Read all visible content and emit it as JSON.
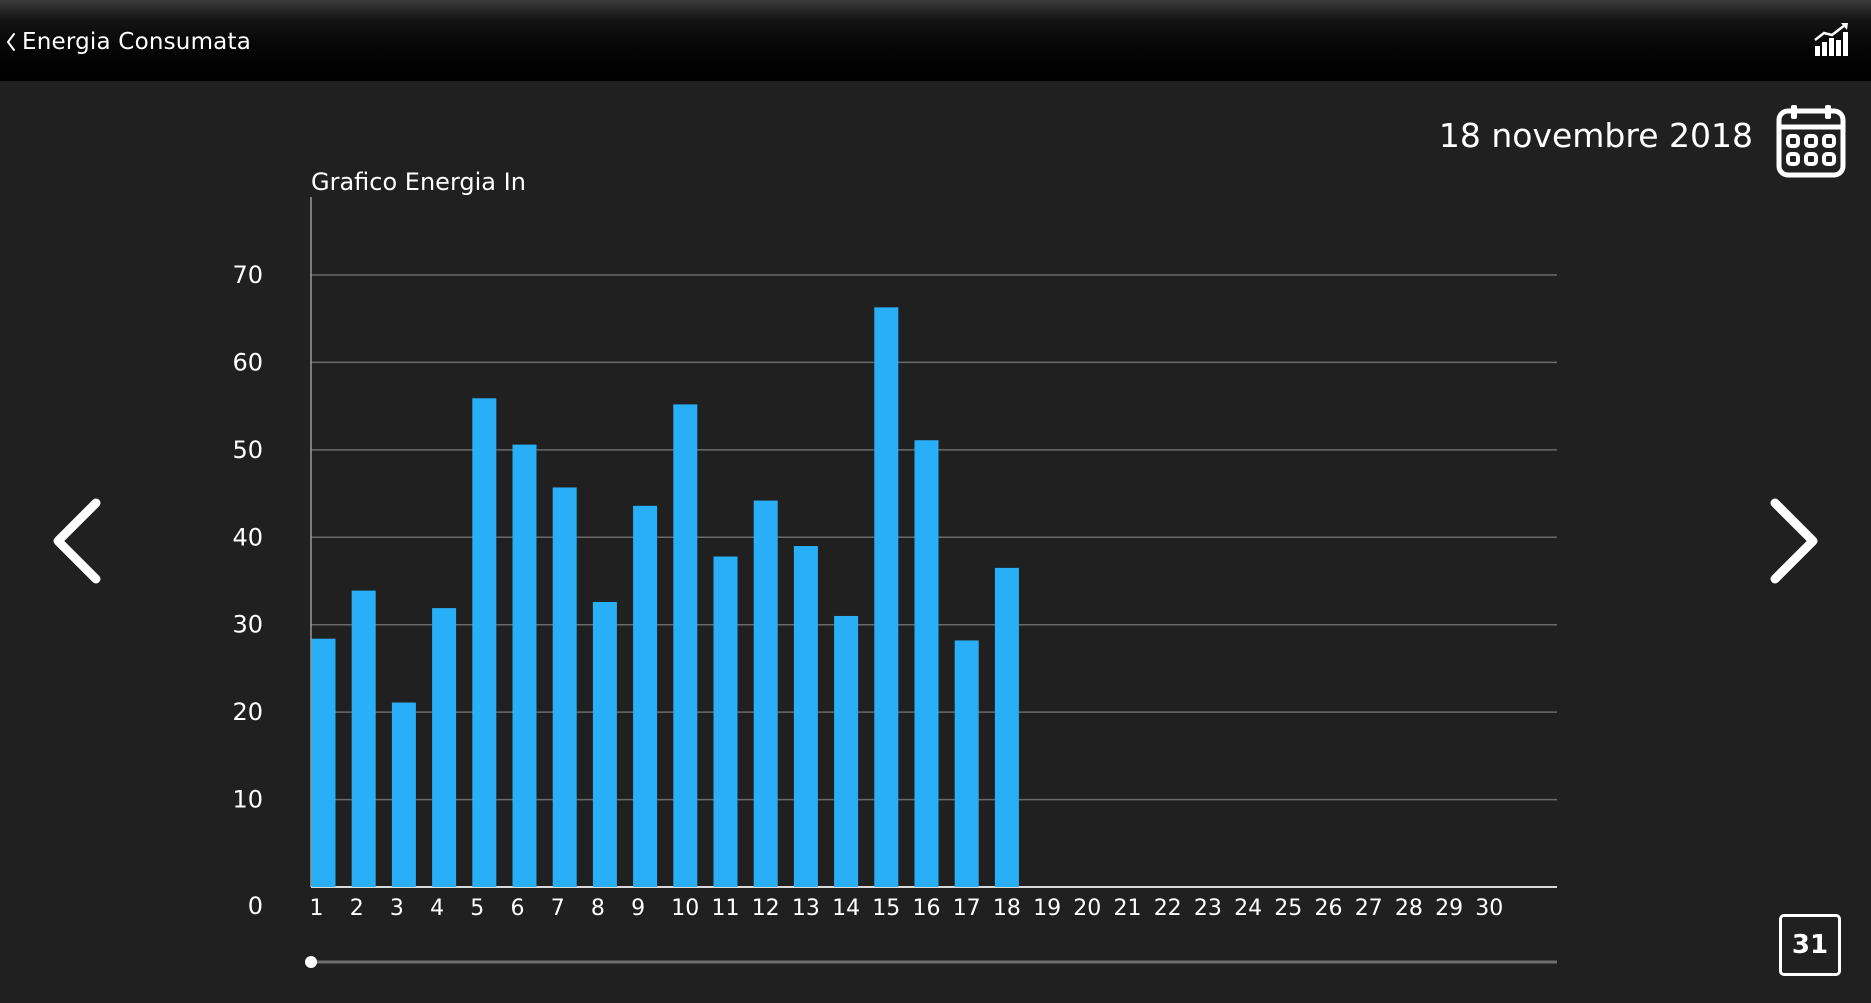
{
  "header": {
    "back_label": "Energia Consumata",
    "back_icon": "chevron-left-icon",
    "stats_icon": "bar-chart-trend-icon"
  },
  "date_label": "18 novembre 2018",
  "calendar_icon": "calendar-icon",
  "navigation": {
    "prev_icon": "chevron-left-icon",
    "next_icon": "chevron-right-icon"
  },
  "month_button_label": "31",
  "colors": {
    "background": "#202020",
    "bar": "#29aef8",
    "text": "#ffffff",
    "grid": "#6a6a6a"
  },
  "chart_data": {
    "type": "bar",
    "title": "Grafico Energia In",
    "xlabel": "",
    "ylabel": "",
    "categories": [
      "1",
      "2",
      "3",
      "4",
      "5",
      "6",
      "7",
      "8",
      "9",
      "10",
      "11",
      "12",
      "13",
      "14",
      "15",
      "16",
      "17",
      "18",
      "19",
      "20",
      "21",
      "22",
      "23",
      "24",
      "25",
      "26",
      "27",
      "28",
      "29",
      "30"
    ],
    "values": [
      28.4,
      33.9,
      21.1,
      31.9,
      55.9,
      50.6,
      45.7,
      32.6,
      43.6,
      55.2,
      37.8,
      44.2,
      39.0,
      31.0,
      66.3,
      51.1,
      28.2,
      36.5,
      null,
      null,
      null,
      null,
      null,
      null,
      null,
      null,
      null,
      null,
      null,
      null
    ],
    "yticks": [
      0,
      10,
      20,
      30,
      40,
      50,
      60,
      70
    ],
    "ylim": [
      0,
      70
    ],
    "grid": true,
    "legend": "none",
    "scroll_position": 0
  }
}
